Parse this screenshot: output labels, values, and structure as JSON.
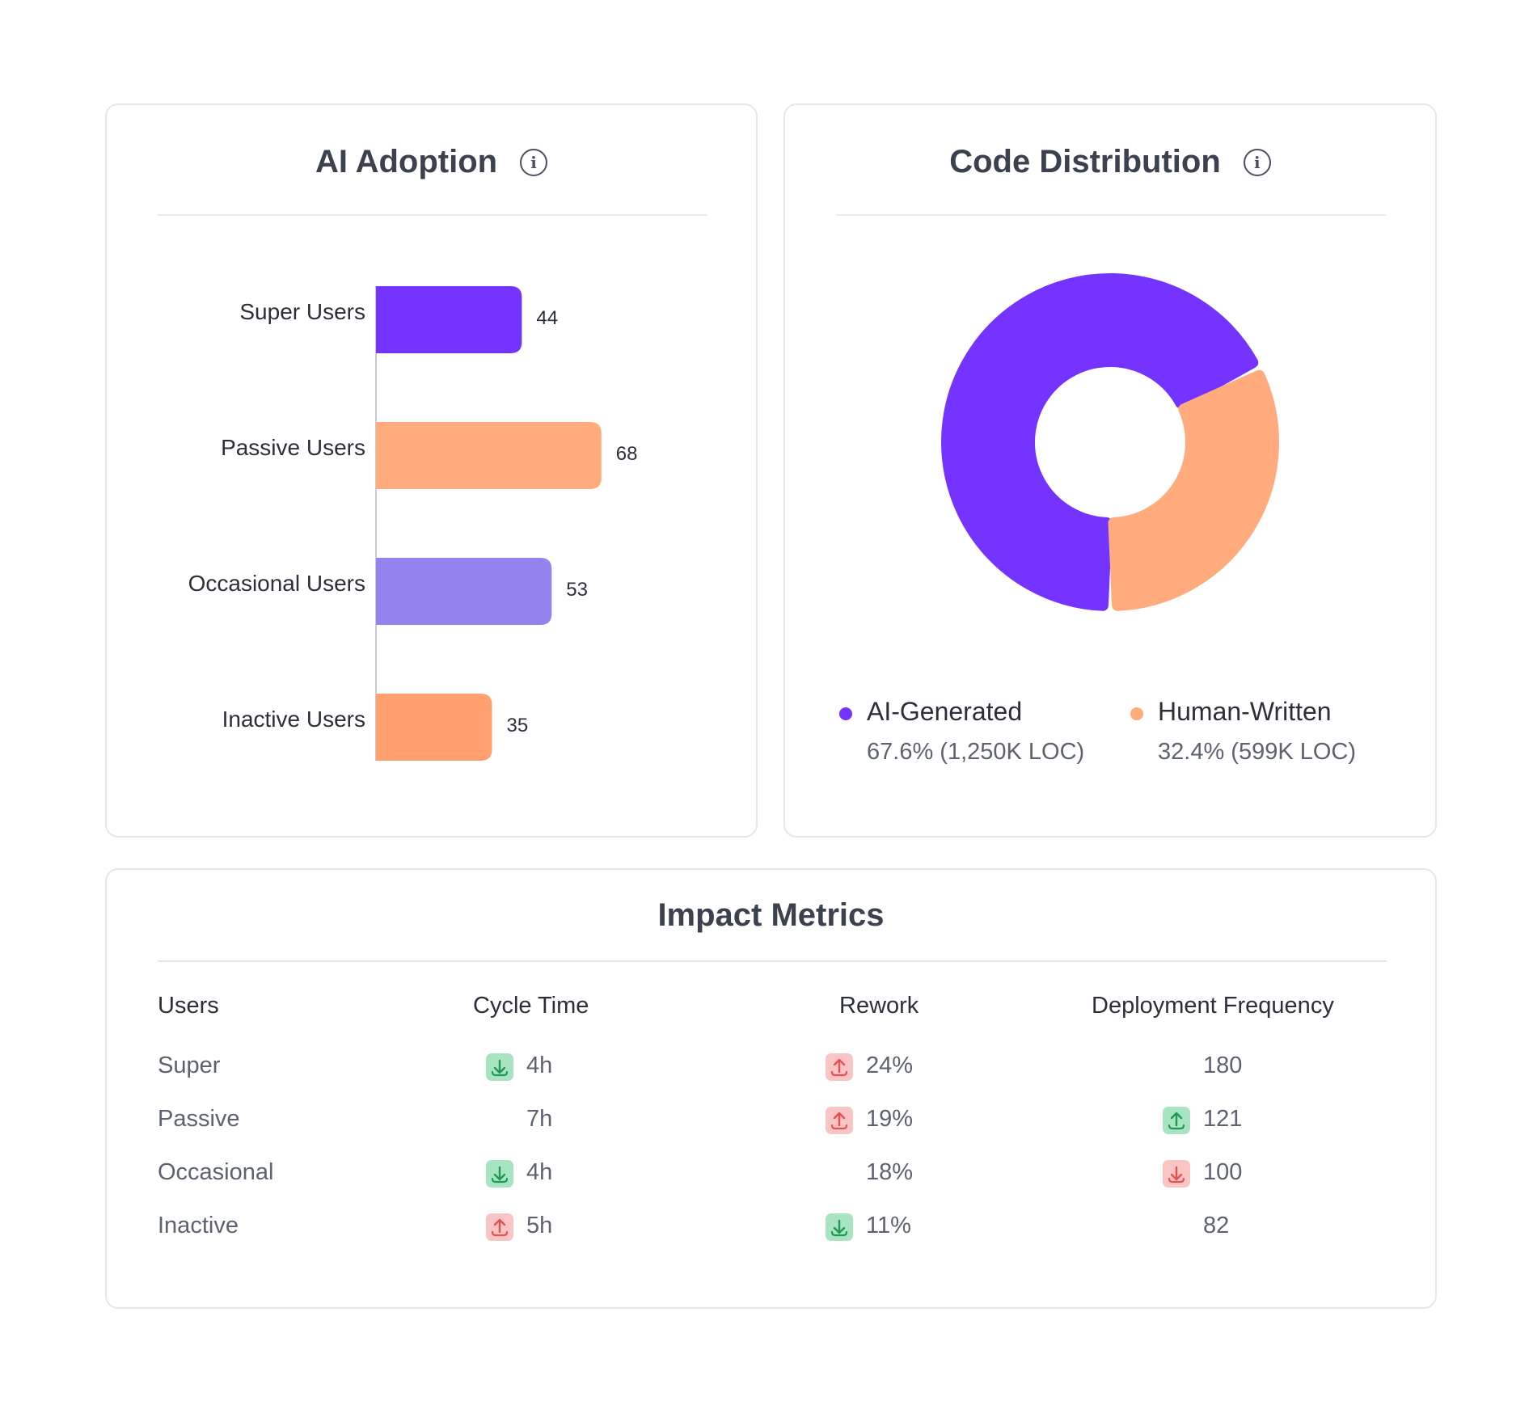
{
  "adoption": {
    "title": "AI Adoption",
    "info_icon": "info-icon",
    "chart_data": {
      "type": "bar",
      "orientation": "horizontal",
      "categories": [
        "Super Users",
        "Passive Users",
        "Occasional Users",
        "Inactive Users"
      ],
      "values": [
        44,
        68,
        53,
        35
      ],
      "colors": [
        "#7433ff",
        "#ffab7e",
        "#9483ef",
        "#ffa06e"
      ],
      "xlim": [
        0,
        80
      ]
    }
  },
  "distribution": {
    "title": "Code Distribution",
    "info_icon": "info-icon",
    "chart_data": {
      "type": "pie",
      "labels": [
        "AI-Generated",
        "Human-Written"
      ],
      "values": [
        67.6,
        32.4
      ],
      "colors": [
        "#7433ff",
        "#ffab7e"
      ]
    },
    "legend": [
      {
        "name": "AI-Generated",
        "detail": "67.6% (1,250K LOC)",
        "color": "#7433ff"
      },
      {
        "name": "Human-Written",
        "detail": "32.4% (599K LOC)",
        "color": "#ffab7e"
      }
    ]
  },
  "impact": {
    "title": "Impact Metrics",
    "headers": [
      "Users",
      "Cycle Time",
      "Rework",
      "Deployment Frequency"
    ],
    "rows": [
      {
        "user": "Super",
        "cycle": {
          "value": "4h",
          "trend": "down-good"
        },
        "rework": {
          "value": "24%",
          "trend": "up-bad"
        },
        "deploy": {
          "value": "180",
          "trend": "none"
        }
      },
      {
        "user": "Passive",
        "cycle": {
          "value": "7h",
          "trend": "none"
        },
        "rework": {
          "value": "19%",
          "trend": "up-bad"
        },
        "deploy": {
          "value": "121",
          "trend": "up-good"
        }
      },
      {
        "user": "Occasional",
        "cycle": {
          "value": "4h",
          "trend": "down-good"
        },
        "rework": {
          "value": "18%",
          "trend": "none"
        },
        "deploy": {
          "value": "100",
          "trend": "down-bad"
        }
      },
      {
        "user": "Inactive",
        "cycle": {
          "value": "5h",
          "trend": "up-bad"
        },
        "rework": {
          "value": "11%",
          "trend": "down-good"
        },
        "deploy": {
          "value": "82",
          "trend": "none"
        }
      }
    ]
  }
}
